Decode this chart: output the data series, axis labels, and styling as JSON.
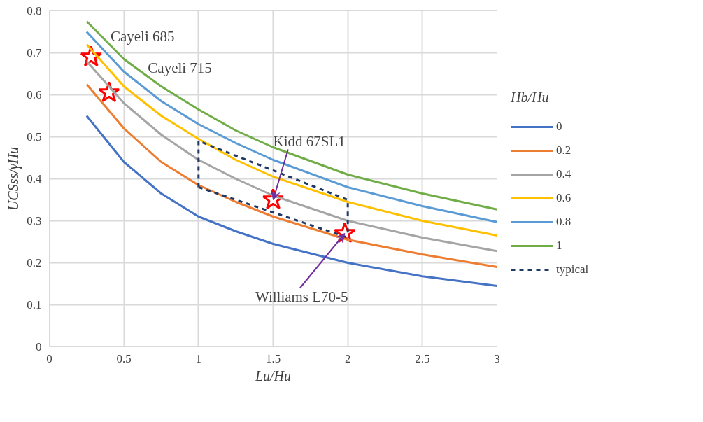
{
  "chart_data": {
    "type": "line",
    "xlabel": "Lu/Hu",
    "ylabel": "UCSss/γHu",
    "legend_title": "Hb/Hu",
    "x": [
      0.25,
      0.5,
      0.75,
      1,
      1.25,
      1.5,
      2,
      2.5,
      3
    ],
    "series": [
      {
        "name": "0",
        "color": "#4472c4",
        "values": [
          0.55,
          0.44,
          0.365,
          0.31,
          0.275,
          0.245,
          0.2,
          0.168,
          0.145
        ]
      },
      {
        "name": "0.2",
        "color": "#ed7d31",
        "values": [
          0.625,
          0.52,
          0.44,
          0.385,
          0.345,
          0.31,
          0.255,
          0.22,
          0.19
        ]
      },
      {
        "name": "0.4",
        "color": "#a5a5a5",
        "values": [
          0.68,
          0.58,
          0.505,
          0.445,
          0.4,
          0.36,
          0.3,
          0.26,
          0.228
        ]
      },
      {
        "name": "0.6",
        "color": "#ffc000",
        "values": [
          0.72,
          0.62,
          0.55,
          0.495,
          0.445,
          0.405,
          0.345,
          0.3,
          0.265
        ]
      },
      {
        "name": "0.8",
        "color": "#5b9bd5",
        "values": [
          0.75,
          0.655,
          0.585,
          0.53,
          0.485,
          0.445,
          0.38,
          0.335,
          0.297
        ]
      },
      {
        "name": "1",
        "color": "#70ad47",
        "values": [
          0.775,
          0.685,
          0.62,
          0.565,
          0.515,
          0.475,
          0.41,
          0.365,
          0.327
        ]
      },
      {
        "name": "typical",
        "color": "#203864",
        "line_style": "dashed",
        "x": [
          1,
          1,
          2,
          2
        ],
        "values": [
          0.38,
          0.49,
          0.35,
          0.26
        ]
      },
      {
        "color": "#203864",
        "line_style": "dashed",
        "x": [
          1,
          2
        ],
        "values": [
          0.38,
          0.26
        ]
      },
      {
        "type": "scatter",
        "marker": "star",
        "color": "#ff0000",
        "x": [
          0.28,
          0.4,
          1.5,
          1.98
        ],
        "values": [
          0.69,
          0.605,
          0.35,
          0.27
        ]
      }
    ],
    "annotations": [
      {
        "text": "Cayeli 685",
        "x": 0.28,
        "y": 0.69
      },
      "Cayeli 715",
      {
        "text": "Kidd 67SL1",
        "x": 1.5,
        "y": 0.35
      },
      {
        "text": "Williams L70-5",
        "x": 1.98,
        "y": 0.27
      }
    ],
    "xlim": [
      0,
      3
    ],
    "ylim": [
      0,
      0.8
    ],
    "xticks": [
      0,
      0.5,
      1,
      1.5,
      2,
      2.5,
      3
    ],
    "yticks": [
      0,
      0.1,
      0.2,
      0.3,
      0.4,
      0.5,
      0.6,
      0.7,
      0.8
    ],
    "grid": true,
    "legend": "right",
    "line_style": "solid",
    "marker": "none"
  }
}
